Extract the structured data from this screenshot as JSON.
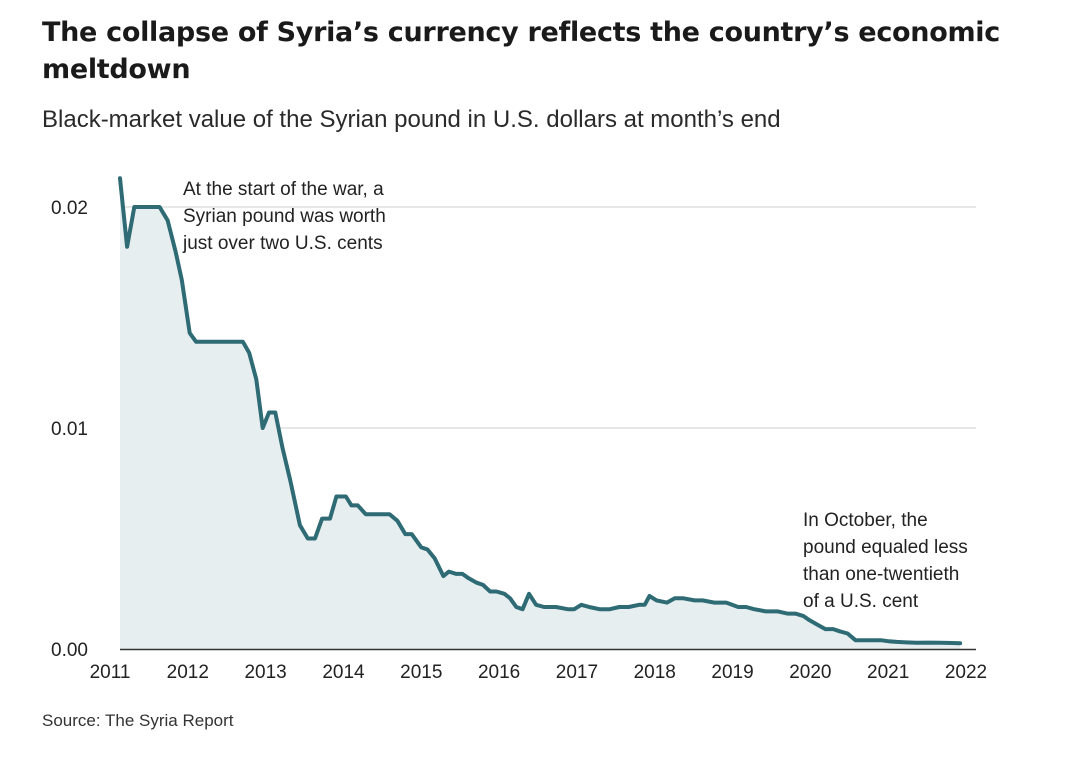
{
  "title": "The collapse of Syria’s currency reflects the country’s economic meltdown",
  "subtitle": "Black-market value of the Syrian pound in U.S. dollars at month’s end",
  "source": "Source: The Syria Report",
  "colors": {
    "line": "#2e6b74",
    "area": "#e6eef0",
    "grid": "#cfcfcf",
    "axis": "#333333"
  },
  "chart_data": {
    "type": "area",
    "xlim": [
      2011,
      2022
    ],
    "ylim": [
      0,
      0.02
    ],
    "x_ticks": [
      2011,
      2012,
      2013,
      2014,
      2015,
      2016,
      2017,
      2018,
      2019,
      2020,
      2021,
      2022
    ],
    "x_tick_labels": [
      "2011",
      "2012",
      "2013",
      "2014",
      "2015",
      "2016",
      "2017",
      "2018",
      "2019",
      "2020",
      "2021",
      "2022"
    ],
    "y_ticks": [
      0,
      0.01,
      0.02
    ],
    "y_tick_labels": [
      "0.00",
      "0.01",
      "0.02"
    ],
    "grid": true,
    "annotations": [
      {
        "lines": [
          "At the start of the war, a",
          "Syrian pound was worth",
          "just over two U.S. cents"
        ]
      },
      {
        "lines": [
          "In October, the",
          "pound equaled less",
          "than one-twentieth",
          "of a U.S. cent"
        ]
      }
    ],
    "series": [
      {
        "points": [
          [
            2011.2,
            0.0213
          ],
          [
            2011.29,
            0.0182
          ],
          [
            2011.38,
            0.02
          ],
          [
            2011.5,
            0.02
          ],
          [
            2011.6,
            0.02
          ],
          [
            2011.7,
            0.02
          ],
          [
            2011.8,
            0.0194
          ],
          [
            2011.9,
            0.018
          ],
          [
            2011.98,
            0.0167
          ],
          [
            2012.08,
            0.0143
          ],
          [
            2012.16,
            0.0139
          ],
          [
            2012.3,
            0.0139
          ],
          [
            2012.5,
            0.0139
          ],
          [
            2012.7,
            0.0139
          ],
          [
            2012.75,
            0.0139
          ],
          [
            2012.83,
            0.0134
          ],
          [
            2012.92,
            0.0122
          ],
          [
            2013.0,
            0.01
          ],
          [
            2013.08,
            0.0107
          ],
          [
            2013.16,
            0.0107
          ],
          [
            2013.25,
            0.0091
          ],
          [
            2013.35,
            0.0076
          ],
          [
            2013.47,
            0.0056
          ],
          [
            2013.57,
            0.005
          ],
          [
            2013.66,
            0.005
          ],
          [
            2013.75,
            0.0059
          ],
          [
            2013.85,
            0.0059
          ],
          [
            2013.93,
            0.0069
          ],
          [
            2014.05,
            0.0069
          ],
          [
            2014.12,
            0.0065
          ],
          [
            2014.2,
            0.0065
          ],
          [
            2014.3,
            0.0061
          ],
          [
            2014.4,
            0.0061
          ],
          [
            2014.5,
            0.0061
          ],
          [
            2014.6,
            0.0061
          ],
          [
            2014.7,
            0.0058
          ],
          [
            2014.8,
            0.0052
          ],
          [
            2014.88,
            0.0052
          ],
          [
            2015.0,
            0.0046
          ],
          [
            2015.08,
            0.0045
          ],
          [
            2015.17,
            0.0041
          ],
          [
            2015.28,
            0.0033
          ],
          [
            2015.35,
            0.0035
          ],
          [
            2015.44,
            0.0034
          ],
          [
            2015.52,
            0.0034
          ],
          [
            2015.6,
            0.0032
          ],
          [
            2015.7,
            0.003
          ],
          [
            2015.78,
            0.0029
          ],
          [
            2015.87,
            0.0026
          ],
          [
            2015.95,
            0.0026
          ],
          [
            2016.05,
            0.0025
          ],
          [
            2016.12,
            0.0023
          ],
          [
            2016.2,
            0.0019
          ],
          [
            2016.28,
            0.0018
          ],
          [
            2016.36,
            0.0025
          ],
          [
            2016.45,
            0.002
          ],
          [
            2016.55,
            0.0019
          ],
          [
            2016.7,
            0.0019
          ],
          [
            2016.85,
            0.0018
          ],
          [
            2016.93,
            0.0018
          ],
          [
            2017.02,
            0.002
          ],
          [
            2017.12,
            0.0019
          ],
          [
            2017.25,
            0.0018
          ],
          [
            2017.38,
            0.0018
          ],
          [
            2017.5,
            0.0019
          ],
          [
            2017.62,
            0.0019
          ],
          [
            2017.75,
            0.002
          ],
          [
            2017.82,
            0.002
          ],
          [
            2017.88,
            0.0024
          ],
          [
            2017.97,
            0.0022
          ],
          [
            2018.1,
            0.0021
          ],
          [
            2018.2,
            0.0023
          ],
          [
            2018.3,
            0.0023
          ],
          [
            2018.45,
            0.0022
          ],
          [
            2018.55,
            0.0022
          ],
          [
            2018.7,
            0.0021
          ],
          [
            2018.85,
            0.0021
          ],
          [
            2019.0,
            0.0019
          ],
          [
            2019.1,
            0.0019
          ],
          [
            2019.2,
            0.0018
          ],
          [
            2019.35,
            0.0017
          ],
          [
            2019.5,
            0.0017
          ],
          [
            2019.62,
            0.0016
          ],
          [
            2019.72,
            0.0016
          ],
          [
            2019.82,
            0.0015
          ],
          [
            2019.9,
            0.0013
          ],
          [
            2020.0,
            0.0011
          ],
          [
            2020.1,
            0.0009
          ],
          [
            2020.2,
            0.0009
          ],
          [
            2020.28,
            0.0008
          ],
          [
            2020.38,
            0.0007
          ],
          [
            2020.48,
            0.0004
          ],
          [
            2020.55,
            0.0004
          ],
          [
            2020.7,
            0.0004
          ],
          [
            2020.8,
            0.0004
          ],
          [
            2020.9,
            0.00035
          ],
          [
            2021.0,
            0.00032
          ],
          [
            2021.12,
            0.0003
          ],
          [
            2021.25,
            0.00028
          ],
          [
            2021.4,
            0.00029
          ],
          [
            2021.55,
            0.00028
          ],
          [
            2021.7,
            0.00027
          ],
          [
            2021.8,
            0.00026
          ]
        ]
      }
    ]
  }
}
